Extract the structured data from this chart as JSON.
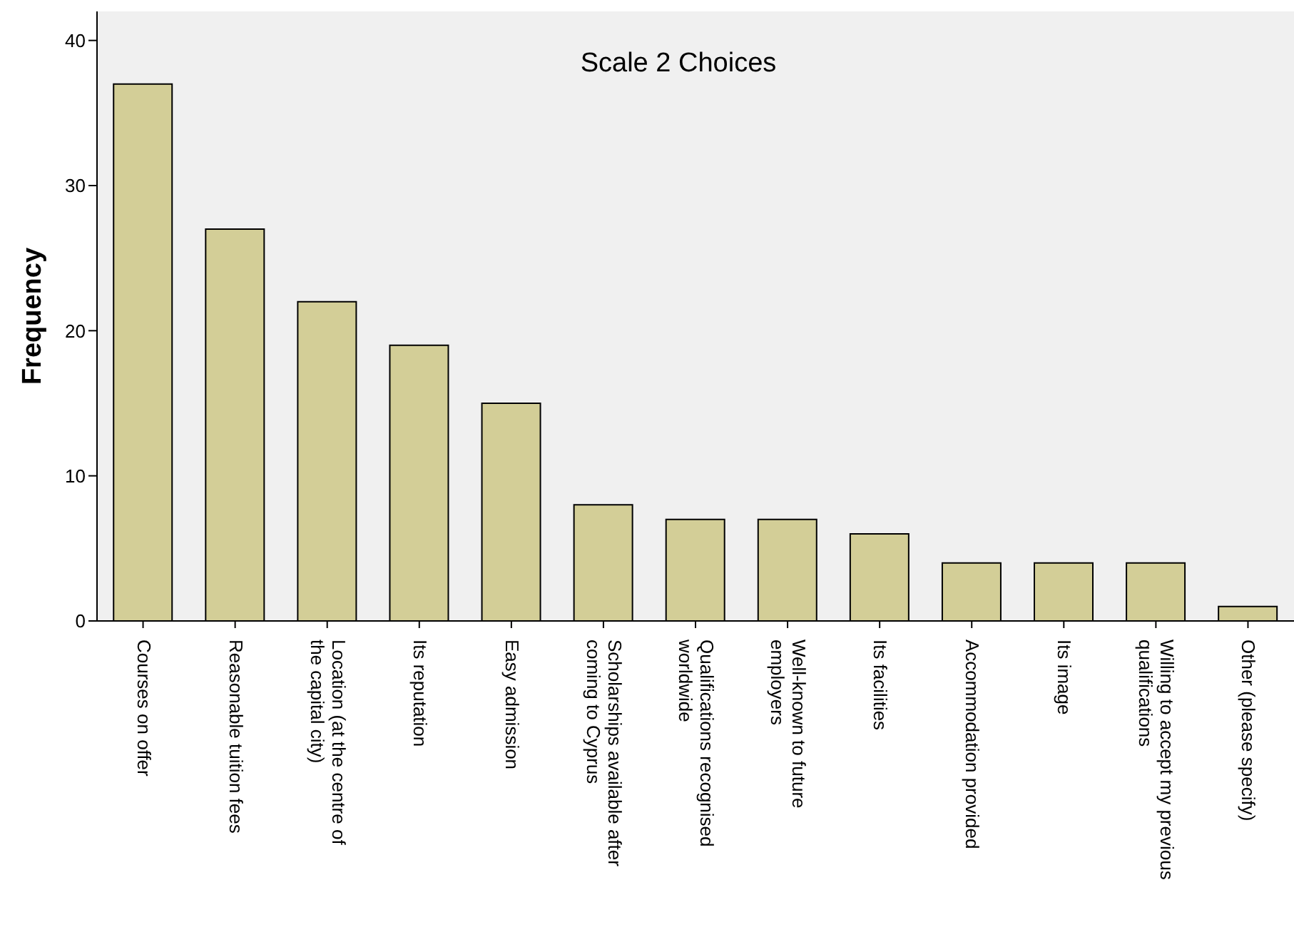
{
  "chart_data": {
    "type": "bar",
    "title": "Scale 2 Choices",
    "ylabel": "Frequency",
    "categories": [
      "Courses on offer",
      "Reasonable tuition fees",
      "Location (at the centre of the capital city)",
      "Its reputation",
      "Easy admission",
      "Scholarships available after coming to Cyprus",
      "Qualifications recognised worldwide",
      "Well-known to future employers",
      "Its facilities",
      "Accommodation provided",
      "Its image",
      "Willing to accept my previous qualifications",
      "Other (please specify)"
    ],
    "values": [
      37,
      27,
      22,
      19,
      15,
      8,
      7,
      7,
      6,
      4,
      4,
      4,
      1
    ],
    "color": "#d3ce97",
    "ylim": [
      0,
      42
    ],
    "yticks": [
      0,
      10,
      20,
      30,
      40
    ],
    "grid": false
  }
}
